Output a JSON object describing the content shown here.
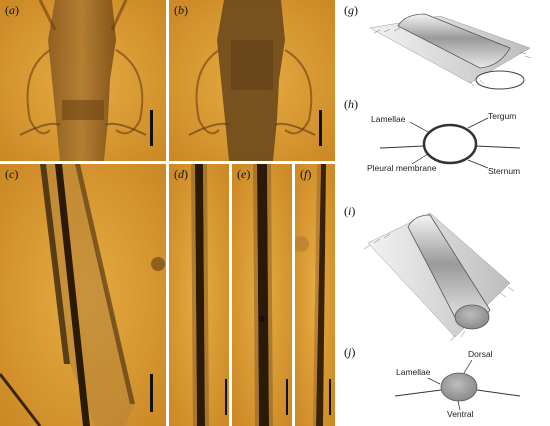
{
  "figure": {
    "panels": [
      {
        "id": "a",
        "label_open": "(",
        "label_letter": "a",
        "label_close": ")"
      },
      {
        "id": "b",
        "label_open": "(",
        "label_letter": "b",
        "label_close": ")"
      },
      {
        "id": "c",
        "label_open": "(",
        "label_letter": "c",
        "label_close": ")"
      },
      {
        "id": "d",
        "label_open": "(",
        "label_letter": "d",
        "label_close": ")"
      },
      {
        "id": "e",
        "label_open": "(",
        "label_letter": "e",
        "label_close": ")"
      },
      {
        "id": "f",
        "label_open": "(",
        "label_letter": "f",
        "label_close": ")"
      }
    ],
    "diagrams": [
      {
        "id": "g",
        "label_open": "(",
        "label_letter": "g",
        "label_close": ")"
      },
      {
        "id": "h",
        "label_open": "(",
        "label_letter": "h",
        "label_close": ")"
      },
      {
        "id": "i",
        "label_open": "(",
        "label_letter": "i",
        "label_close": ")"
      },
      {
        "id": "j",
        "label_open": "(",
        "label_letter": "j",
        "label_close": ")"
      }
    ],
    "annotations_h": {
      "lamellae": "Lamellae",
      "tergum": "Tergum",
      "pleural_membrane": "Pleural membrane",
      "sternum": "Sternum"
    },
    "annotations_j": {
      "lamellae": "Lamellae",
      "dorsal": "Dorsal",
      "ventral": "Ventral"
    },
    "colors": {
      "amber": "#d99a2c",
      "amber_dark": "#8a5a1c",
      "cuticle": "#3a2510",
      "diagram_stroke": "#333333"
    }
  }
}
